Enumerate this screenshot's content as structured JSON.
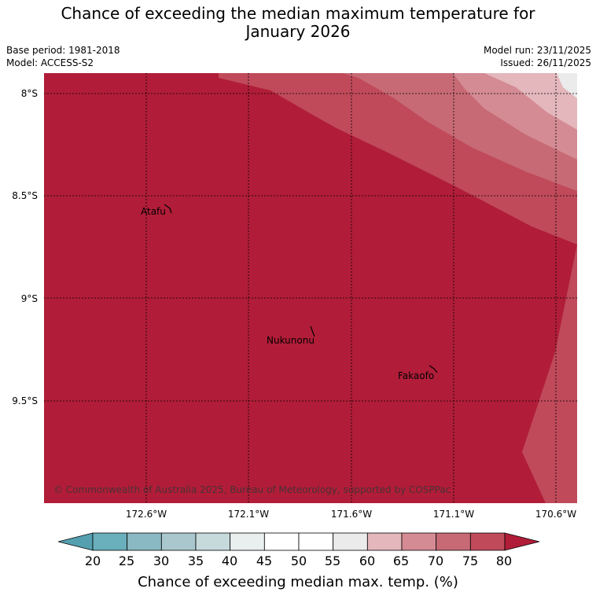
{
  "title": {
    "line1": "Chance of exceeding the median maximum temperature for",
    "line2": "January 2026"
  },
  "meta": {
    "base_period": "Base period: 1981-2018",
    "model": "Model: ACCESS-S2",
    "model_run": "Model run: 23/11/2025",
    "issued": "Issued: 26/11/2025"
  },
  "map": {
    "lat_labels": [
      "8°S",
      "8.5°S",
      "9°S",
      "9.5°S"
    ],
    "lon_labels": [
      "172.6°W",
      "172.1°W",
      "171.6°W",
      "171.1°W",
      "170.6°W"
    ],
    "places": {
      "atafu": "Atafu",
      "nukunonu": "Nukunonu",
      "fakaofo": "Fakaofo"
    },
    "copyright": "© Commonwealth of Australia 2025, Bureau of Meteorology, supported by COSPPac"
  },
  "colorbar": {
    "ticks": [
      "20",
      "25",
      "30",
      "35",
      "40",
      "45",
      "50",
      "55",
      "60",
      "65",
      "70",
      "75",
      "80"
    ],
    "label": "Chance of exceeding median max. temp. (%)",
    "colors": [
      "#54a0b0",
      "#6aafbc",
      "#8ab8c3",
      "#a9c7cc",
      "#c6d9db",
      "#e9eeef",
      "#ffffff",
      "#ffffff",
      "#ebebeb",
      "#e3b7bc",
      "#d48b94",
      "#c76a76",
      "#c04a5a",
      "#b11d38"
    ]
  }
}
